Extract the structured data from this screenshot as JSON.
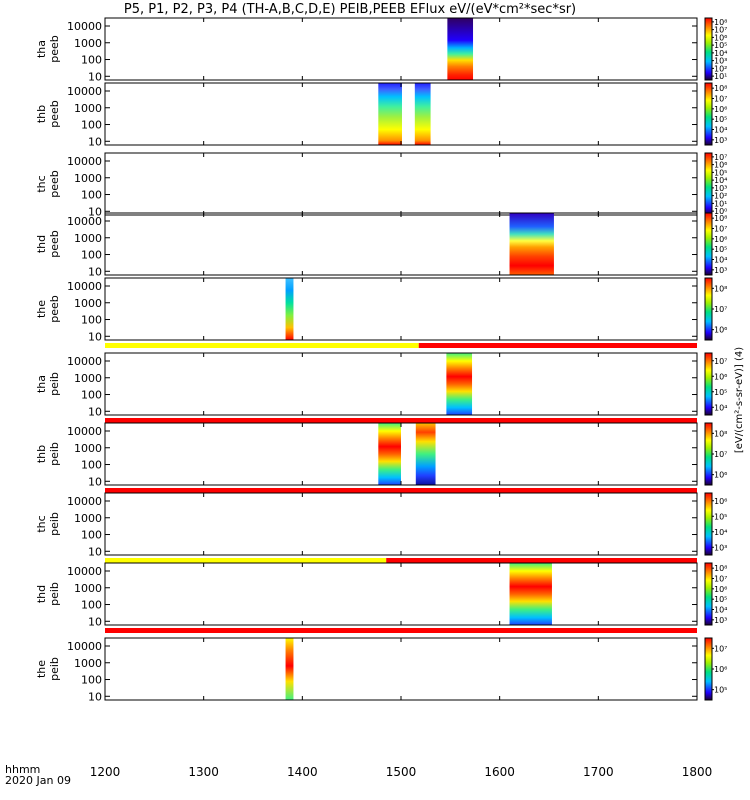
{
  "title": "P5, P1, P2, P3, P4 (TH-A,B,C,D,E) PEIB,PEEB EFlux eV/(eV*cm²*sec*sr)",
  "colorbar_unit_label": "[eV/(cm²-s-sr-eV)] (4)",
  "colors": {
    "ok_flag": "#ff0000",
    "caution_flag": "#ffff00",
    "frame": "#000000"
  },
  "chart_data": {
    "type": "heatmap",
    "title": "P5, P1, P2, P3, P4 (TH-A,B,C,D,E) PEIB,PEEB EFlux eV/(eV*cm²*sec*sr)",
    "x_axis": {
      "label_line1": "hhmm",
      "label_line2": "2020 Jan 09",
      "range": [
        1200,
        1800
      ],
      "ticks": [
        1200,
        1300,
        1400,
        1500,
        1600,
        1700,
        1800
      ],
      "tick_labels": [
        "1200",
        "1300",
        "1400",
        "1500",
        "1600",
        "1700",
        "1800"
      ]
    },
    "y_axis": {
      "scale": "log",
      "unit": "eV",
      "range": [
        6,
        30000
      ],
      "ticks": [
        10,
        100,
        1000,
        10000
      ],
      "tick_labels": [
        "10",
        "100",
        "1000",
        "10000"
      ]
    },
    "panels": [
      {
        "name": "tha peeb",
        "label_line1": "tha",
        "label_line2": "peeb",
        "species": "electron",
        "blocks": [
          {
            "start": 1547,
            "end": 1573,
            "pattern": "electron-high-energy-depleted"
          }
        ],
        "colorbar": {
          "exponents": [
            1,
            2,
            3,
            4,
            5,
            6,
            7,
            8
          ],
          "labels": [
            "10¹",
            "10²",
            "10³",
            "10⁴",
            "10⁵",
            "10⁶",
            "10⁷",
            "10⁸"
          ]
        }
      },
      {
        "name": "thb peeb",
        "label_line1": "thb",
        "label_line2": "peeb",
        "species": "electron",
        "blocks": [
          {
            "start": 1477,
            "end": 1501,
            "pattern": "electron-broad"
          },
          {
            "start": 1514,
            "end": 1530,
            "pattern": "electron-broad"
          }
        ],
        "colorbar": {
          "exponents": [
            3,
            4,
            5,
            6,
            7,
            8
          ],
          "labels": [
            "10³",
            "10⁴",
            "10⁵",
            "10⁶",
            "10⁷",
            "10⁸"
          ]
        }
      },
      {
        "name": "thc peeb",
        "label_line1": "thc",
        "label_line2": "peeb",
        "species": "electron",
        "blocks": [],
        "colorbar": {
          "exponents": [
            0,
            1,
            2,
            3,
            4,
            5,
            6,
            7
          ],
          "labels": [
            "10⁰",
            "10¹",
            "10²",
            "10³",
            "10⁴",
            "10⁵",
            "10⁶",
            "10⁷"
          ]
        }
      },
      {
        "name": "thd peeb",
        "label_line1": "thd",
        "label_line2": "peeb",
        "species": "electron",
        "blocks": [
          {
            "start": 1610,
            "end": 1655,
            "pattern": "electron-plasma-sheet"
          }
        ],
        "colorbar": {
          "exponents": [
            3,
            4,
            5,
            6,
            7,
            8
          ],
          "labels": [
            "10³",
            "10⁴",
            "10⁵",
            "10⁶",
            "10⁷",
            "10⁸"
          ]
        }
      },
      {
        "name": "the peeb",
        "label_line1": "the",
        "label_line2": "peeb",
        "species": "electron",
        "blocks": [
          {
            "start": 1383,
            "end": 1391,
            "pattern": "electron-narrow"
          }
        ],
        "colorbar": {
          "exponents": [
            6,
            7,
            8
          ],
          "labels": [
            "10⁶",
            "10⁷",
            "10⁸"
          ]
        },
        "flag_bar": [
          {
            "start": 1200,
            "end": 1518,
            "status": "caution"
          },
          {
            "start": 1518,
            "end": 1800,
            "status": "ok"
          }
        ]
      },
      {
        "name": "tha peib",
        "label_line1": "tha",
        "label_line2": "peib",
        "species": "ion",
        "blocks": [
          {
            "start": 1546,
            "end": 1572,
            "pattern": "ion-hot"
          }
        ],
        "colorbar": {
          "exponents": [
            4,
            5,
            6,
            7
          ],
          "labels": [
            "10⁴",
            "10⁵",
            "10⁶",
            "10⁷"
          ]
        },
        "flag_bar": [
          {
            "start": 1200,
            "end": 1800,
            "status": "ok"
          }
        ]
      },
      {
        "name": "thb peib",
        "label_line1": "thb",
        "label_line2": "peib",
        "species": "ion",
        "blocks": [
          {
            "start": 1477,
            "end": 1500,
            "pattern": "ion-hot"
          },
          {
            "start": 1515,
            "end": 1535,
            "pattern": "ion-cool"
          }
        ],
        "colorbar": {
          "exponents": [
            6,
            7,
            8
          ],
          "labels": [
            "10⁶",
            "10⁷",
            "10⁸"
          ]
        },
        "flag_bar": [
          {
            "start": 1200,
            "end": 1800,
            "status": "ok"
          }
        ]
      },
      {
        "name": "thc peib",
        "label_line1": "thc",
        "label_line2": "peib",
        "species": "ion",
        "blocks": [],
        "colorbar": {
          "exponents": [
            3,
            4,
            5,
            6
          ],
          "labels": [
            "10³",
            "10⁴",
            "10⁵",
            "10⁶"
          ]
        },
        "flag_bar": [
          {
            "start": 1200,
            "end": 1485,
            "status": "caution"
          },
          {
            "start": 1485,
            "end": 1800,
            "status": "ok"
          }
        ]
      },
      {
        "name": "thd peib",
        "label_line1": "thd",
        "label_line2": "peib",
        "species": "ion",
        "blocks": [
          {
            "start": 1610,
            "end": 1653,
            "pattern": "ion-hot"
          }
        ],
        "colorbar": {
          "exponents": [
            3,
            4,
            5,
            6,
            7,
            8
          ],
          "labels": [
            "10³",
            "10⁴",
            "10⁵",
            "10⁶",
            "10⁷",
            "10⁸"
          ]
        },
        "flag_bar": [
          {
            "start": 1200,
            "end": 1800,
            "status": "ok"
          }
        ]
      },
      {
        "name": "the peib",
        "label_line1": "the",
        "label_line2": "peib",
        "species": "ion",
        "blocks": [
          {
            "start": 1383,
            "end": 1391,
            "pattern": "ion-narrow"
          }
        ],
        "colorbar": {
          "exponents": [
            5,
            6,
            7
          ],
          "labels": [
            "10⁵",
            "10⁶",
            "10⁷"
          ]
        }
      }
    ]
  }
}
